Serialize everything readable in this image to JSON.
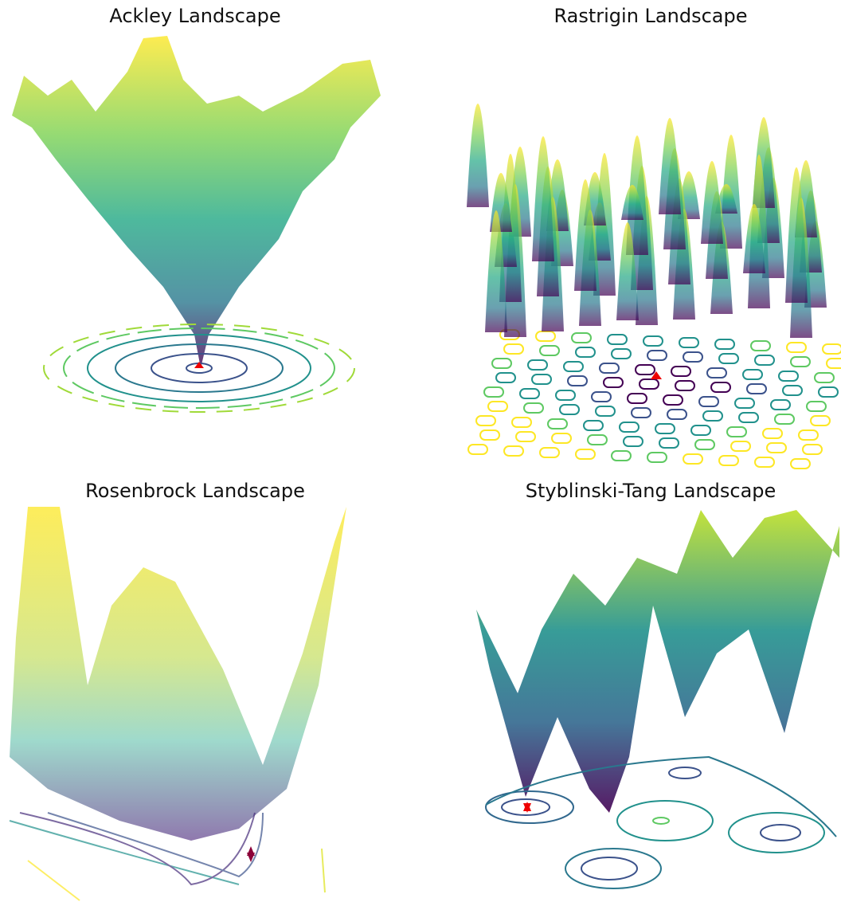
{
  "chart_data": [
    {
      "type": "surface",
      "title": "Ackley Landscape"
    },
    {
      "type": "surface",
      "title": "Rastrigin Landscape"
    },
    {
      "type": "surface",
      "title": "Rosenbrock Landscape"
    },
    {
      "type": "surface",
      "title": "Styblinski-Tang Landscape"
    }
  ]
}
